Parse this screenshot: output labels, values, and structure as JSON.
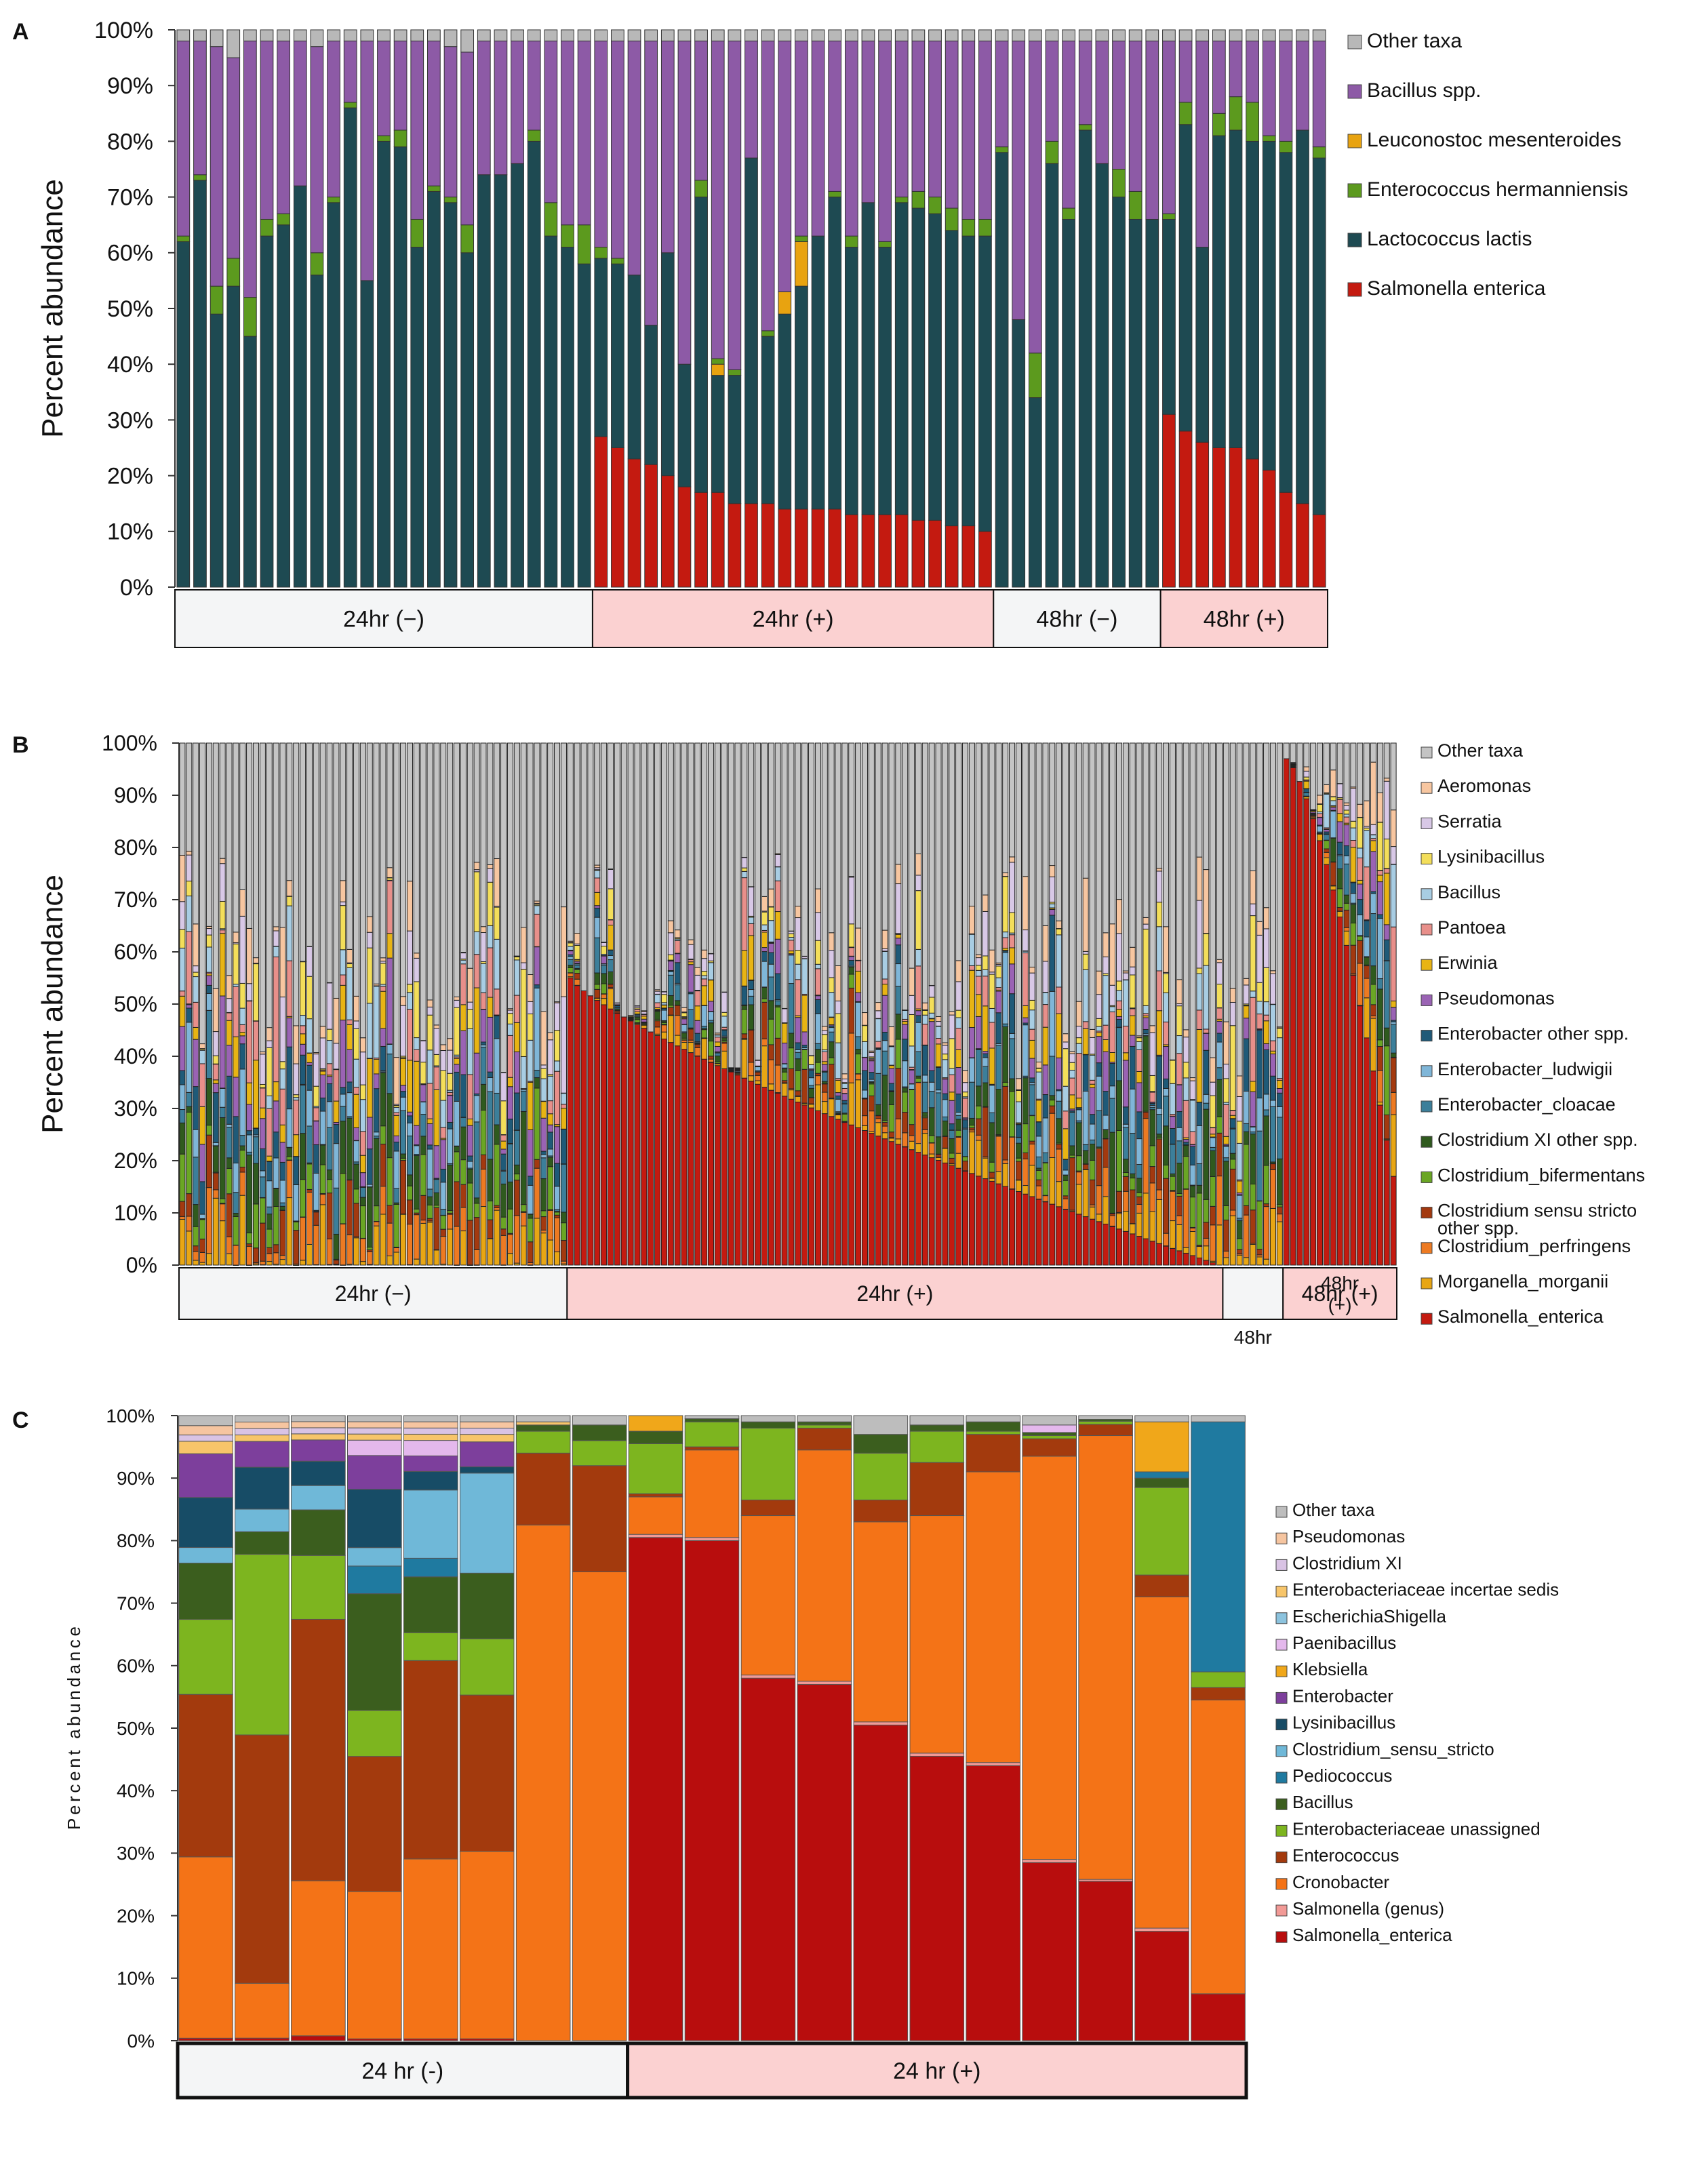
{
  "colors": {
    "salmonella": "#c41a10",
    "lacto": "#1e4a52",
    "entero": "#5c9a1e",
    "leuco": "#e8a310",
    "bacillus": "#8d5aa6",
    "other": "#b8b8b8",
    "group_neg_fill": "#f4f5f6",
    "group_pos_fill": "#fbd1d1"
  },
  "chart_data": [
    {
      "id": "A",
      "type": "stacked-bar",
      "panel_label": "A",
      "ylabel": "Percent abundance",
      "ylim": [
        0,
        100
      ],
      "yticks": [
        "0%",
        "10%",
        "20%",
        "30%",
        "40%",
        "50%",
        "60%",
        "70%",
        "80%",
        "90%",
        "100%"
      ],
      "legend": [
        {
          "label": "Other taxa",
          "color": "#b8b8b8"
        },
        {
          "label": "Bacillus spp.",
          "color": "#8d5aa6"
        },
        {
          "label": "Leuconostoc mesenteroides",
          "color": "#e8a310"
        },
        {
          "label": "Enterococcus hermanniensis",
          "color": "#5c9a1e"
        },
        {
          "label": "Lactococcus lactis",
          "color": "#1e4a52"
        },
        {
          "label": "Salmonella enterica",
          "color": "#c41a10"
        }
      ],
      "groups": [
        {
          "label": "24hr (−)",
          "n": 25,
          "positive": false
        },
        {
          "label": "24hr (+)",
          "n": 24,
          "positive": true
        },
        {
          "label": "48hr (−)",
          "n": 10,
          "positive": false
        },
        {
          "label": "48hr (+)",
          "n": 10,
          "positive": true
        }
      ],
      "series_order": [
        "Salmonella enterica",
        "Lactococcus lactis",
        "Leuconostoc mesenteroides",
        "Enterococcus hermanniensis",
        "Bacillus spp.",
        "Other taxa"
      ],
      "series_colors": [
        "#c41a10",
        "#1e4a52",
        "#e8a310",
        "#5c9a1e",
        "#8d5aa6",
        "#b8b8b8"
      ],
      "bars": [
        [
          0,
          62,
          0,
          1,
          35,
          2
        ],
        [
          0,
          73,
          0,
          1,
          24,
          2
        ],
        [
          0,
          49,
          0,
          5,
          43,
          3
        ],
        [
          0,
          54,
          0,
          5,
          36,
          5
        ],
        [
          0,
          45,
          0,
          7,
          46,
          2
        ],
        [
          0,
          63,
          0,
          3,
          32,
          2
        ],
        [
          0,
          65,
          0,
          2,
          31,
          2
        ],
        [
          0,
          72,
          0,
          0,
          26,
          2
        ],
        [
          0,
          56,
          0,
          4,
          37,
          3
        ],
        [
          0,
          69,
          0,
          1,
          28,
          2
        ],
        [
          0,
          86,
          0,
          1,
          11,
          2
        ],
        [
          0,
          55,
          0,
          0,
          43,
          2
        ],
        [
          0,
          80,
          0,
          1,
          17,
          2
        ],
        [
          0,
          79,
          0,
          3,
          16,
          2
        ],
        [
          0,
          61,
          0,
          5,
          32,
          2
        ],
        [
          0,
          71,
          0,
          1,
          26,
          2
        ],
        [
          0,
          69,
          0,
          1,
          27,
          3
        ],
        [
          0,
          60,
          0,
          5,
          31,
          4
        ],
        [
          0,
          74,
          0,
          0,
          24,
          2
        ],
        [
          0,
          74,
          0,
          0,
          24,
          2
        ],
        [
          0,
          76,
          0,
          0,
          22,
          2
        ],
        [
          0,
          80,
          0,
          2,
          16,
          2
        ],
        [
          0,
          63,
          0,
          6,
          29,
          2
        ],
        [
          0,
          61,
          0,
          4,
          33,
          2
        ],
        [
          0,
          58,
          0,
          7,
          33,
          2
        ],
        [
          27,
          32,
          0,
          2,
          37,
          2
        ],
        [
          25,
          33,
          0,
          1,
          39,
          2
        ],
        [
          23,
          33,
          0,
          0,
          42,
          2
        ],
        [
          22,
          25,
          0,
          0,
          51,
          2
        ],
        [
          20,
          40,
          0,
          0,
          38,
          2
        ],
        [
          18,
          22,
          0,
          0,
          58,
          2
        ],
        [
          17,
          53,
          0,
          3,
          25,
          2
        ],
        [
          17,
          21,
          2,
          1,
          57,
          2
        ],
        [
          15,
          23,
          0,
          1,
          59,
          2
        ],
        [
          15,
          62,
          0,
          0,
          21,
          2
        ],
        [
          15,
          30,
          0,
          1,
          52,
          2
        ],
        [
          14,
          35,
          4,
          0,
          45,
          2
        ],
        [
          14,
          40,
          8,
          1,
          35,
          2
        ],
        [
          14,
          49,
          0,
          0,
          35,
          2
        ],
        [
          14,
          56,
          0,
          1,
          27,
          2
        ],
        [
          13,
          48,
          0,
          2,
          35,
          2
        ],
        [
          13,
          56,
          0,
          0,
          29,
          2
        ],
        [
          13,
          48,
          0,
          1,
          36,
          2
        ],
        [
          13,
          56,
          0,
          1,
          28,
          2
        ],
        [
          12,
          56,
          0,
          3,
          27,
          2
        ],
        [
          12,
          55,
          0,
          3,
          28,
          2
        ],
        [
          11,
          53,
          0,
          4,
          30,
          2
        ],
        [
          11,
          52,
          0,
          3,
          32,
          2
        ],
        [
          10,
          53,
          0,
          3,
          32,
          2
        ]
      ],
      "note": "last 20 bars (48hr groups) continue below",
      "bars_48": [
        [
          0,
          78,
          0,
          1,
          19,
          2
        ],
        [
          0,
          48,
          0,
          0,
          50,
          2
        ],
        [
          0,
          34,
          0,
          8,
          56,
          2
        ],
        [
          0,
          76,
          0,
          4,
          18,
          2
        ],
        [
          0,
          66,
          0,
          2,
          30,
          2
        ],
        [
          0,
          82,
          0,
          1,
          15,
          2
        ],
        [
          0,
          76,
          0,
          0,
          22,
          2
        ],
        [
          0,
          70,
          0,
          5,
          23,
          2
        ],
        [
          0,
          66,
          0,
          5,
          27,
          2
        ],
        [
          0,
          66,
          0,
          0,
          32,
          2
        ],
        [
          31,
          35,
          0,
          1,
          31,
          2
        ],
        [
          28,
          55,
          0,
          4,
          11,
          2
        ],
        [
          26,
          35,
          0,
          0,
          37,
          2
        ],
        [
          25,
          56,
          0,
          4,
          13,
          2
        ],
        [
          25,
          57,
          0,
          6,
          10,
          2
        ],
        [
          23,
          57,
          0,
          7,
          11,
          2
        ],
        [
          21,
          59,
          0,
          1,
          17,
          2
        ],
        [
          17,
          61,
          0,
          2,
          18,
          2
        ],
        [
          15,
          67,
          0,
          0,
          16,
          2
        ],
        [
          13,
          64,
          0,
          2,
          19,
          2
        ]
      ]
    },
    {
      "id": "B",
      "type": "stacked-bar",
      "panel_label": "B",
      "ylabel": "Percent abundance",
      "ylim": [
        0,
        100
      ],
      "yticks": [
        "0%",
        "10%",
        "20%",
        "30%",
        "40%",
        "50%",
        "60%",
        "70%",
        "80%",
        "90%",
        "100%"
      ],
      "legend": [
        {
          "label": "Other taxa",
          "color": "#c4c4c4"
        },
        {
          "label": "Aeromonas",
          "color": "#f7c6a0"
        },
        {
          "label": "Serratia",
          "color": "#d8c8e6"
        },
        {
          "label": "Lysinibacillus",
          "color": "#f3de5a"
        },
        {
          "label": "Bacillus",
          "color": "#a8cde3"
        },
        {
          "label": "Pantoea",
          "color": "#e88f8a"
        },
        {
          "label": "Erwinia",
          "color": "#e8b414"
        },
        {
          "label": "Pseudomonas",
          "color": "#9a63b4"
        },
        {
          "label": "Enterobacter other spp.",
          "color": "#1f5a78"
        },
        {
          "label": "Enterobacter_ludwigii",
          "color": "#7fb6d8"
        },
        {
          "label": "Enterobacter_cloacae",
          "color": "#3c7f9a"
        },
        {
          "label": "Clostridium XI other spp.",
          "color": "#2f5a1e"
        },
        {
          "label": "Clostridium_bifermentans",
          "color": "#6aa624"
        },
        {
          "label": "Clostridium sensu stricto other spp.",
          "color": "#a3390f"
        },
        {
          "label": "Clostridium_perfringens",
          "color": "#ed7a22"
        },
        {
          "label": "Morganella_morganii",
          "color": "#e8a614"
        },
        {
          "label": "Salmonella_enterica",
          "color": "#c41a10"
        }
      ],
      "groups": [
        {
          "label": "24hr (−)",
          "positive": false
        },
        {
          "label": "24hr (+)",
          "positive": true
        },
        {
          "label": "48hr",
          "positive": false
        },
        {
          "label": "48hr (+)",
          "positive": true
        }
      ],
      "group_counts": [
        58,
        98,
        9,
        17
      ],
      "salmonella_profile": {
        "24hr (+)": {
          "start": 55,
          "end": 0
        },
        "48hr (+)": {
          "start": 97,
          "end": 17
        }
      }
    },
    {
      "id": "C",
      "type": "stacked-bar",
      "panel_label": "C",
      "ylabel": "Percent abundance",
      "ylim": [
        0,
        100
      ],
      "yticks": [
        "0%",
        "10%",
        "20%",
        "30%",
        "40%",
        "50%",
        "60%",
        "70%",
        "80%",
        "90%",
        "100%"
      ],
      "legend": [
        {
          "label": "Other taxa",
          "color": "#bdbdbd"
        },
        {
          "label": "Pseudomonas",
          "color": "#f6c5a0"
        },
        {
          "label": "Clostridium XI",
          "color": "#d9c3e4"
        },
        {
          "label": "Enterobacteriaceae incertae sedis",
          "color": "#f7c56a"
        },
        {
          "label": "EscherichiaShigella",
          "color": "#8cc3de"
        },
        {
          "label": "Paenibacillus",
          "color": "#e4b8ec"
        },
        {
          "label": "Klebsiella",
          "color": "#f0a71a"
        },
        {
          "label": "Enterobacter",
          "color": "#7d3f9c"
        },
        {
          "label": "Lysinibacillus",
          "color": "#174c66"
        },
        {
          "label": "Clostridium_sensu_stricto",
          "color": "#6fb8d8"
        },
        {
          "label": "Pediococcus",
          "color": "#1f7aa0"
        },
        {
          "label": "Bacillus",
          "color": "#3b5e1e"
        },
        {
          "label": "Enterobacteriaceae unassigned",
          "color": "#7db51f"
        },
        {
          "label": "Enterococcus",
          "color": "#a33a0d"
        },
        {
          "label": "Cronobacter",
          "color": "#f47317"
        },
        {
          "label": "Salmonella (genus)",
          "color": "#f29a96"
        },
        {
          "label": "Salmonella_enterica",
          "color": "#b80d0d"
        }
      ],
      "groups": [
        {
          "label": "24 hr (-)",
          "n": 8,
          "positive": false
        },
        {
          "label": "24 hr (+)",
          "n": 11,
          "positive": true
        }
      ],
      "series_order": [
        "Salmonella_enterica",
        "Salmonella (genus)",
        "Cronobacter",
        "Enterococcus",
        "Enterobacteriaceae unassigned",
        "Bacillus",
        "Pediococcus",
        "Clostridium_sensu_stricto",
        "Lysinibacillus",
        "Enterobacter",
        "Klebsiella",
        "Paenibacillus",
        "EscherichiaShigella",
        "Enterobacteriaceae incertae sedis",
        "Clostridium XI",
        "Pseudomonas",
        "Other taxa"
      ],
      "bars": [
        [
          0.4,
          0,
          29,
          26,
          12,
          9,
          0,
          2.5,
          8,
          7,
          0,
          0,
          0,
          2,
          1,
          1.5,
          1.6
        ],
        [
          0.4,
          0,
          8.5,
          38.5,
          28,
          3.5,
          0,
          3.5,
          6.5,
          4,
          0,
          0,
          0,
          1,
          1,
          1,
          1
        ],
        [
          0.8,
          0,
          25.5,
          43,
          10.5,
          7.5,
          0,
          4,
          4,
          3.5,
          0,
          0,
          0,
          1,
          1,
          1,
          1
        ],
        [
          0.3,
          0,
          24,
          22,
          7.5,
          19,
          4.5,
          3,
          9.5,
          5.5,
          0,
          2.5,
          0,
          1,
          1,
          1,
          1
        ],
        [
          0.3,
          0,
          29,
          32,
          4.5,
          9,
          3,
          11,
          3,
          2.5,
          0,
          2.5,
          0,
          1,
          1,
          1,
          1
        ],
        [
          0.3,
          0,
          30,
          25,
          9,
          10.5,
          0,
          16,
          1,
          4,
          0,
          0,
          0,
          1.2,
          1,
          1,
          1
        ],
        [
          0,
          0,
          82.5,
          11.5,
          3.5,
          1,
          0,
          0,
          0,
          0,
          0,
          0,
          0,
          0.5,
          0,
          0,
          1
        ],
        [
          0,
          0,
          75,
          17,
          4,
          2.5,
          0,
          0,
          0,
          0,
          0,
          0,
          0,
          0,
          0,
          0,
          1.5
        ],
        [
          80.5,
          0.5,
          6,
          0.5,
          8,
          2,
          0,
          0,
          0,
          0,
          2.5,
          0,
          0,
          0,
          0,
          0,
          0
        ],
        [
          80,
          0.5,
          14,
          0.5,
          4,
          0.5,
          0,
          0,
          0,
          0,
          0,
          0,
          0,
          0,
          0,
          0,
          0.5
        ],
        [
          58,
          0.5,
          25.5,
          2.5,
          11.5,
          1,
          0,
          0,
          0,
          0,
          0,
          0,
          0,
          0,
          0,
          0,
          1
        ],
        [
          57,
          0.5,
          37,
          3.5,
          0.5,
          0.5,
          0,
          0,
          0,
          0,
          0,
          0,
          0,
          0,
          0,
          0,
          1
        ],
        [
          50.5,
          0.5,
          32,
          3.5,
          7.5,
          3,
          0,
          0,
          0,
          0,
          0,
          0,
          0,
          0,
          0,
          0,
          3
        ],
        [
          45.5,
          0.5,
          38,
          8.5,
          5,
          1,
          0,
          0,
          0,
          0,
          0,
          0,
          0,
          0,
          0,
          0,
          1.5
        ],
        [
          44,
          0.5,
          46.5,
          6,
          0.5,
          1.5,
          0,
          0,
          0,
          0,
          0,
          0,
          0,
          0,
          0,
          0,
          1
        ],
        [
          28.5,
          0.5,
          64.5,
          2.8,
          0.5,
          0.5,
          0,
          0,
          0,
          0,
          0,
          1.2,
          0,
          0,
          0,
          0,
          1.5
        ],
        [
          25.5,
          0.3,
          71,
          1.8,
          0.5,
          0.3,
          0,
          0,
          0,
          0,
          0,
          0,
          0,
          0,
          0,
          0,
          0.6
        ],
        [
          17.5,
          0.5,
          53,
          3.5,
          14,
          1.5,
          1,
          0,
          0,
          0,
          8,
          0,
          0,
          0,
          0,
          0,
          1
        ],
        [
          7.5,
          0,
          47,
          2,
          2.5,
          0,
          40,
          0,
          0,
          0,
          0,
          0,
          0,
          0,
          0,
          0,
          1
        ]
      ]
    }
  ]
}
